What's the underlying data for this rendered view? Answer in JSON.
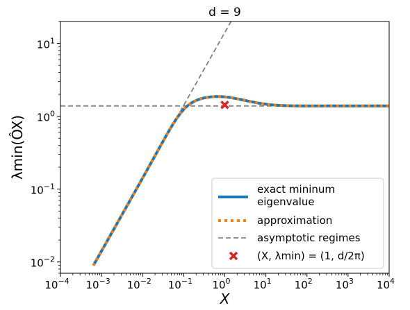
{
  "chart_data": {
    "type": "line",
    "title": "d = 9",
    "xlabel": "X",
    "ylabel": "λmin(ÔX)",
    "xscale": "log",
    "yscale": "log",
    "xlim": [
      0.0001,
      10000
    ],
    "ylim": [
      0.007,
      20
    ],
    "x_ticks": [
      {
        "value": 0.0001,
        "base": "10",
        "exp": "−4"
      },
      {
        "value": 0.001,
        "base": "10",
        "exp": "−3"
      },
      {
        "value": 0.01,
        "base": "10",
        "exp": "−2"
      },
      {
        "value": 0.1,
        "base": "10",
        "exp": "−1"
      },
      {
        "value": 1,
        "base": "10",
        "exp": "0"
      },
      {
        "value": 10,
        "base": "10",
        "exp": "1"
      },
      {
        "value": 100,
        "base": "10",
        "exp": "2"
      },
      {
        "value": 1000,
        "base": "10",
        "exp": "3"
      },
      {
        "value": 10000,
        "base": "10",
        "exp": "4"
      }
    ],
    "y_ticks": [
      {
        "value": 0.01,
        "base": "10",
        "exp": "−2"
      },
      {
        "value": 0.1,
        "base": "10",
        "exp": "−1"
      },
      {
        "value": 1,
        "base": "10",
        "exp": "0"
      },
      {
        "value": 10,
        "base": "10",
        "exp": "1"
      }
    ],
    "d": 9,
    "series": [
      {
        "name": "exact mininum eigenvalue",
        "style": "solid",
        "color": "#1f77b4"
      },
      {
        "name": "approximation",
        "style": "dotted",
        "color": "#ff7f0e"
      },
      {
        "name": "asymptotic regimes",
        "style": "dashed",
        "color": "#808080"
      }
    ],
    "marker": {
      "name": "(X, λmin) = (1, d/2π)",
      "x": 1,
      "y": 1.432,
      "color": "#d62728"
    },
    "legend": {
      "position": "lower right",
      "entries": [
        {
          "lines": [
            "exact mininum",
            "eigenvalue"
          ]
        },
        {
          "lines": [
            "approximation"
          ]
        },
        {
          "lines": [
            "asymptotic regimes"
          ]
        },
        {
          "lines": [
            "(X, λmin) = (1, d/2π)"
          ]
        }
      ]
    }
  }
}
